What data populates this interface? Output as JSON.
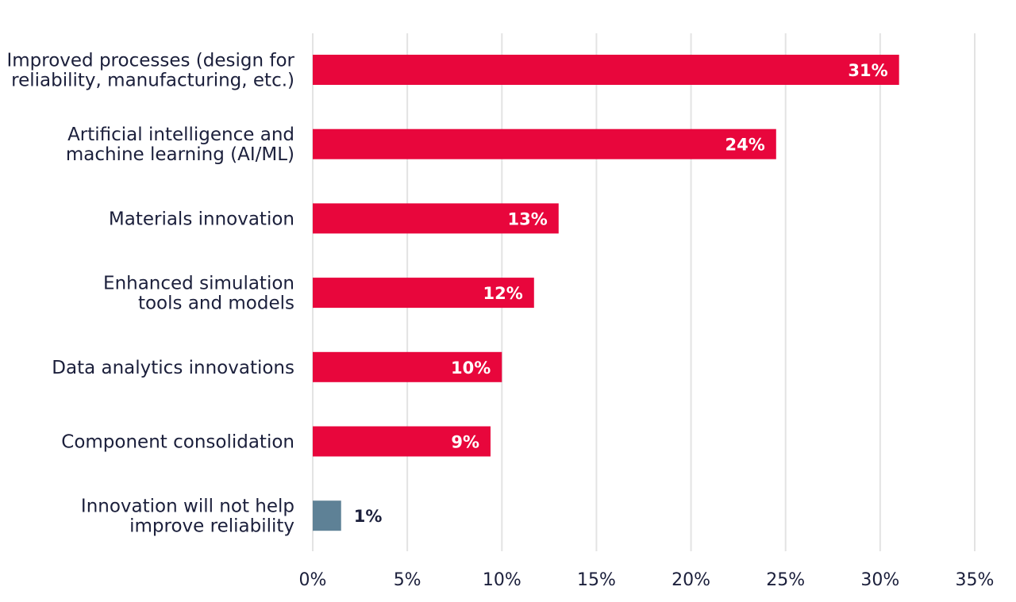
{
  "chart_data": {
    "type": "bar",
    "orientation": "horizontal",
    "categories": [
      [
        "Improved processes (design for",
        "reliability, manufacturing, etc.)"
      ],
      [
        "Artificial intelligence and",
        "machine learning (AI/ML)"
      ],
      [
        "Materials innovation"
      ],
      [
        "Enhanced simulation",
        "tools and models"
      ],
      [
        "Data analytics innovations"
      ],
      [
        "Component consolidation"
      ],
      [
        "Innovation will not help",
        "improve reliability"
      ]
    ],
    "values": [
      31,
      24.5,
      13,
      11.7,
      10,
      9.4,
      1.5
    ],
    "value_labels": [
      "31%",
      "24%",
      "13%",
      "12%",
      "10%",
      "9%",
      "1%"
    ],
    "bar_colors": [
      "#e8063c",
      "#e8063c",
      "#e8063c",
      "#e8063c",
      "#e8063c",
      "#e8063c",
      "#5e8196"
    ],
    "value_label_colors": [
      "#ffffff",
      "#ffffff",
      "#ffffff",
      "#ffffff",
      "#ffffff",
      "#ffffff",
      "#1b1f3b"
    ],
    "value_label_position": [
      "inside-end",
      "inside-end",
      "inside-end",
      "inside-end",
      "inside-end",
      "inside-end",
      "outside-end"
    ],
    "xlim": [
      0,
      35
    ],
    "xticks": [
      0,
      5,
      10,
      15,
      20,
      25,
      30,
      35
    ],
    "xtick_labels": [
      "0%",
      "5%",
      "10%",
      "15%",
      "20%",
      "25%",
      "30%",
      "35%"
    ],
    "grid": "vertical",
    "legend": "none"
  }
}
